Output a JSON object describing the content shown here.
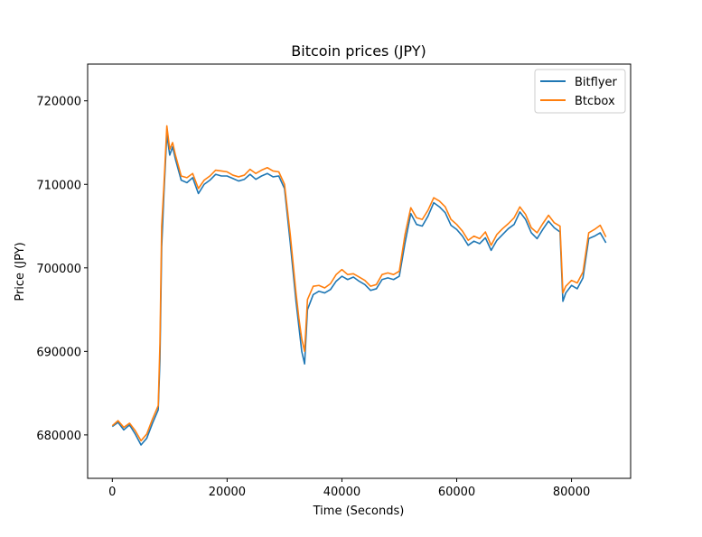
{
  "chart_data": {
    "type": "line",
    "title": "Bitcoin prices (JPY)",
    "xlabel": "Time (Seconds)",
    "ylabel": "Price (JPY)",
    "xlim": [
      -4300,
      90300
    ],
    "ylim": [
      674800,
      724400
    ],
    "xticks": [
      0,
      20000,
      40000,
      60000,
      80000
    ],
    "yticks": [
      680000,
      690000,
      700000,
      710000,
      720000
    ],
    "legend_position": "upper-right",
    "x": [
      0,
      1000,
      2000,
      3000,
      4000,
      5000,
      6000,
      7000,
      8000,
      8300,
      8600,
      9000,
      9500,
      10000,
      10500,
      11000,
      12000,
      13000,
      14000,
      15000,
      16000,
      17000,
      18000,
      19000,
      20000,
      21000,
      22000,
      23000,
      24000,
      25000,
      26000,
      27000,
      28000,
      29000,
      30000,
      31000,
      32000,
      32500,
      33000,
      33500,
      34000,
      35000,
      36000,
      37000,
      38000,
      39000,
      40000,
      41000,
      42000,
      43000,
      44000,
      45000,
      46000,
      47000,
      48000,
      49000,
      50000,
      51000,
      52000,
      53000,
      54000,
      55000,
      56000,
      57000,
      58000,
      59000,
      60000,
      61000,
      62000,
      63000,
      64000,
      65000,
      66000,
      67000,
      68000,
      69000,
      70000,
      71000,
      72000,
      73000,
      74000,
      75000,
      76000,
      77000,
      78000,
      78500,
      79000,
      80000,
      81000,
      82000,
      83000,
      84000,
      85000,
      86000
    ],
    "series": [
      {
        "name": "Bitflyer",
        "color": "#1f77b4",
        "values": [
          681000,
          681500,
          680600,
          681200,
          680100,
          678800,
          679600,
          681400,
          683000,
          689000,
          702500,
          709000,
          716000,
          713500,
          714500,
          713000,
          710500,
          710200,
          710800,
          708900,
          710000,
          710500,
          711200,
          711000,
          711000,
          710700,
          710400,
          710600,
          711200,
          710600,
          711000,
          711300,
          710900,
          711000,
          709500,
          703000,
          696000,
          693000,
          690000,
          688500,
          695000,
          696800,
          697200,
          697000,
          697400,
          698400,
          699000,
          698600,
          698900,
          698400,
          698000,
          697300,
          697500,
          698600,
          698800,
          698600,
          699000,
          703000,
          706500,
          705200,
          705000,
          706200,
          707800,
          707300,
          706600,
          705100,
          704600,
          703800,
          702700,
          703200,
          702900,
          703600,
          702100,
          703300,
          704000,
          704700,
          705200,
          706700,
          705800,
          704200,
          703500,
          704600,
          705600,
          704800,
          704300,
          696000,
          697000,
          697900,
          697500,
          698800,
          703500,
          703800,
          704200,
          703000
        ]
      },
      {
        "name": "Btcbox",
        "color": "#ff7f0e",
        "values": [
          681100,
          681700,
          680900,
          681400,
          680500,
          679300,
          680100,
          681900,
          683500,
          691000,
          705000,
          710000,
          717000,
          714200,
          715000,
          713500,
          711000,
          710800,
          711300,
          709500,
          710500,
          711000,
          711700,
          711600,
          711500,
          711100,
          710900,
          711100,
          711800,
          711300,
          711700,
          712000,
          711600,
          711500,
          710000,
          704000,
          697000,
          694000,
          691500,
          690000,
          696200,
          697800,
          697900,
          697600,
          698100,
          699200,
          699800,
          699200,
          699300,
          698900,
          698500,
          697800,
          698000,
          699200,
          699400,
          699200,
          699600,
          704000,
          707200,
          706000,
          705800,
          706900,
          708400,
          708000,
          707300,
          705800,
          705200,
          704400,
          703300,
          703800,
          703500,
          704300,
          702700,
          704000,
          704700,
          705300,
          706000,
          707300,
          706400,
          704800,
          704200,
          705300,
          706300,
          705400,
          705000,
          697000,
          697800,
          698500,
          698200,
          699500,
          704200,
          704600,
          705100,
          703700
        ]
      }
    ]
  }
}
